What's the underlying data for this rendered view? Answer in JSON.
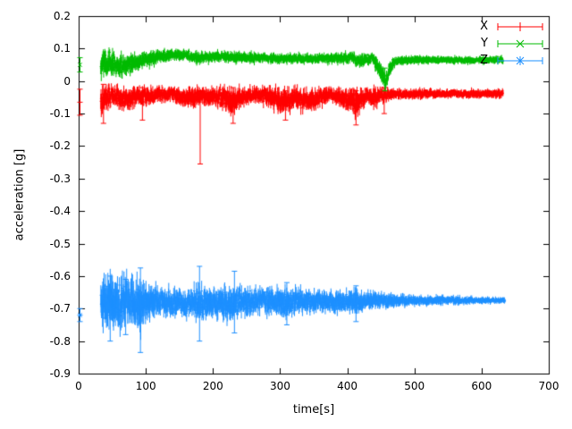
{
  "figure": {
    "background": "#ffffff",
    "border_color": "#000000"
  },
  "chart_data": {
    "type": "scatter",
    "style": "points with vertical error bars (gnuplot errorbars)",
    "title": "",
    "xlabel": "time[s]",
    "ylabel": "acceleration [g]",
    "xlim": [
      0,
      700
    ],
    "ylim": [
      -0.9,
      0.2
    ],
    "grid": false,
    "legend_position": "top-right-inside",
    "x_ticks": {
      "values": [
        0,
        100,
        200,
        300,
        400,
        500,
        600,
        700
      ],
      "labels": [
        "0",
        "100",
        "200",
        "300",
        "400",
        "500",
        "600",
        "700"
      ]
    },
    "y_ticks": {
      "values": [
        -0.9,
        -0.8,
        -0.7,
        -0.6,
        -0.5,
        -0.4,
        -0.3,
        -0.2,
        -0.1,
        0,
        0.1,
        0.2
      ],
      "labels": [
        "-0.9",
        "-0.8",
        "-0.7",
        "-0.6",
        "-0.5",
        "-0.4",
        "-0.3",
        "-0.2",
        "-0.1",
        "0",
        "0.1",
        "0.2"
      ]
    },
    "representation_note": "dense noisy time series; anchors are [t, mean, noise_halfwidth, errorbar_halfwidth], spikes are [t, y_low, y_high]",
    "series": [
      {
        "name": "X",
        "color": "#ff0000",
        "marker": "plus",
        "seed": 101,
        "t_range": [
          33,
          632
        ],
        "start_point": {
          "x": 2,
          "y": -0.065,
          "err": 0.04
        },
        "anchors": [
          [
            33,
            -0.06,
            0.05,
            0.02
          ],
          [
            40,
            -0.05,
            0.04,
            0.018
          ],
          [
            55,
            -0.045,
            0.035,
            0.015
          ],
          [
            70,
            -0.055,
            0.035,
            0.018
          ],
          [
            85,
            -0.045,
            0.03,
            0.015
          ],
          [
            100,
            -0.05,
            0.03,
            0.015
          ],
          [
            120,
            -0.04,
            0.022,
            0.012
          ],
          [
            140,
            -0.042,
            0.022,
            0.012
          ],
          [
            160,
            -0.05,
            0.028,
            0.015
          ],
          [
            178,
            -0.05,
            0.03,
            0.016
          ],
          [
            190,
            -0.045,
            0.026,
            0.014
          ],
          [
            210,
            -0.05,
            0.028,
            0.015
          ],
          [
            228,
            -0.065,
            0.035,
            0.02
          ],
          [
            245,
            -0.045,
            0.025,
            0.013
          ],
          [
            265,
            -0.04,
            0.022,
            0.012
          ],
          [
            285,
            -0.05,
            0.03,
            0.016
          ],
          [
            305,
            -0.065,
            0.035,
            0.02
          ],
          [
            322,
            -0.05,
            0.03,
            0.016
          ],
          [
            340,
            -0.06,
            0.032,
            0.018
          ],
          [
            358,
            -0.05,
            0.028,
            0.015
          ],
          [
            375,
            -0.04,
            0.02,
            0.011
          ],
          [
            395,
            -0.055,
            0.03,
            0.016
          ],
          [
            412,
            -0.068,
            0.04,
            0.02
          ],
          [
            428,
            -0.045,
            0.025,
            0.013
          ],
          [
            445,
            -0.05,
            0.028,
            0.015
          ],
          [
            460,
            -0.042,
            0.018,
            0.01
          ],
          [
            475,
            -0.04,
            0.014,
            0.008
          ],
          [
            510,
            -0.04,
            0.013,
            0.008
          ],
          [
            550,
            -0.038,
            0.012,
            0.007
          ],
          [
            590,
            -0.04,
            0.012,
            0.007
          ],
          [
            632,
            -0.04,
            0.012,
            0.007
          ]
        ],
        "spikes": [
          [
            37,
            -0.13,
            -0.01
          ],
          [
            95,
            -0.12,
            -0.02
          ],
          [
            181,
            -0.255,
            -0.03
          ],
          [
            230,
            -0.13,
            -0.02
          ],
          [
            308,
            -0.12,
            -0.03
          ],
          [
            413,
            -0.135,
            -0.03
          ],
          [
            455,
            -0.1,
            -0.02
          ]
        ]
      },
      {
        "name": "Y",
        "color": "#00bb00",
        "marker": "cross",
        "seed": 202,
        "t_range": [
          33,
          632
        ],
        "start_point": {
          "x": 2,
          "y": 0.05,
          "err": 0.022
        },
        "anchors": [
          [
            33,
            0.05,
            0.045,
            0.02
          ],
          [
            42,
            0.055,
            0.04,
            0.018
          ],
          [
            55,
            0.05,
            0.035,
            0.016
          ],
          [
            68,
            0.045,
            0.032,
            0.015
          ],
          [
            80,
            0.055,
            0.03,
            0.015
          ],
          [
            95,
            0.065,
            0.025,
            0.012
          ],
          [
            110,
            0.07,
            0.02,
            0.011
          ],
          [
            128,
            0.078,
            0.018,
            0.01
          ],
          [
            145,
            0.082,
            0.016,
            0.009
          ],
          [
            160,
            0.08,
            0.016,
            0.009
          ],
          [
            175,
            0.072,
            0.018,
            0.01
          ],
          [
            195,
            0.075,
            0.016,
            0.009
          ],
          [
            215,
            0.078,
            0.016,
            0.009
          ],
          [
            235,
            0.072,
            0.016,
            0.009
          ],
          [
            260,
            0.073,
            0.015,
            0.008
          ],
          [
            290,
            0.07,
            0.014,
            0.008
          ],
          [
            320,
            0.07,
            0.014,
            0.008
          ],
          [
            350,
            0.068,
            0.014,
            0.008
          ],
          [
            380,
            0.07,
            0.015,
            0.008
          ],
          [
            405,
            0.072,
            0.016,
            0.009
          ],
          [
            420,
            0.062,
            0.018,
            0.01
          ],
          [
            438,
            0.07,
            0.015,
            0.008
          ],
          [
            450,
            0.03,
            0.025,
            0.015
          ],
          [
            457,
            -0.005,
            0.02,
            0.012
          ],
          [
            463,
            0.04,
            0.022,
            0.012
          ],
          [
            472,
            0.062,
            0.013,
            0.008
          ],
          [
            500,
            0.065,
            0.011,
            0.007
          ],
          [
            540,
            0.065,
            0.01,
            0.006
          ],
          [
            580,
            0.064,
            0.01,
            0.006
          ],
          [
            632,
            0.066,
            0.01,
            0.006
          ]
        ],
        "spikes": [
          [
            456,
            -0.03,
            0.04
          ]
        ]
      },
      {
        "name": "Z",
        "color": "#1e90ff",
        "marker": "asterisk",
        "seed": 303,
        "t_range": [
          33,
          635
        ],
        "start_point": {
          "x": 2,
          "y": -0.72,
          "err": 0.02
        },
        "anchors": [
          [
            33,
            -0.68,
            0.055,
            0.03
          ],
          [
            42,
            -0.685,
            0.075,
            0.04
          ],
          [
            52,
            -0.68,
            0.07,
            0.038
          ],
          [
            62,
            -0.685,
            0.072,
            0.038
          ],
          [
            72,
            -0.68,
            0.065,
            0.034
          ],
          [
            82,
            -0.685,
            0.068,
            0.036
          ],
          [
            92,
            -0.69,
            0.07,
            0.04
          ],
          [
            102,
            -0.68,
            0.052,
            0.028
          ],
          [
            115,
            -0.677,
            0.042,
            0.022
          ],
          [
            130,
            -0.68,
            0.038,
            0.02
          ],
          [
            150,
            -0.682,
            0.036,
            0.019
          ],
          [
            168,
            -0.68,
            0.04,
            0.021
          ],
          [
            180,
            -0.685,
            0.05,
            0.027
          ],
          [
            195,
            -0.68,
            0.045,
            0.024
          ],
          [
            210,
            -0.683,
            0.048,
            0.025
          ],
          [
            225,
            -0.685,
            0.05,
            0.026
          ],
          [
            240,
            -0.68,
            0.044,
            0.023
          ],
          [
            258,
            -0.68,
            0.04,
            0.02
          ],
          [
            275,
            -0.676,
            0.035,
            0.018
          ],
          [
            292,
            -0.68,
            0.04,
            0.02
          ],
          [
            308,
            -0.684,
            0.045,
            0.023
          ],
          [
            325,
            -0.676,
            0.035,
            0.018
          ],
          [
            342,
            -0.68,
            0.036,
            0.018
          ],
          [
            360,
            -0.676,
            0.03,
            0.016
          ],
          [
            378,
            -0.68,
            0.034,
            0.017
          ],
          [
            395,
            -0.676,
            0.03,
            0.015
          ],
          [
            412,
            -0.68,
            0.034,
            0.017
          ],
          [
            428,
            -0.678,
            0.03,
            0.015
          ],
          [
            445,
            -0.675,
            0.024,
            0.012
          ],
          [
            462,
            -0.677,
            0.021,
            0.011
          ],
          [
            480,
            -0.675,
            0.018,
            0.01
          ],
          [
            505,
            -0.676,
            0.015,
            0.008
          ],
          [
            530,
            -0.674,
            0.013,
            0.007
          ],
          [
            558,
            -0.675,
            0.012,
            0.006
          ],
          [
            585,
            -0.674,
            0.01,
            0.006
          ],
          [
            610,
            -0.675,
            0.009,
            0.005
          ],
          [
            635,
            -0.675,
            0.008,
            0.005
          ]
        ],
        "spikes": [
          [
            47,
            -0.8,
            -0.6
          ],
          [
            70,
            -0.78,
            -0.61
          ],
          [
            92,
            -0.835,
            -0.575
          ],
          [
            180,
            -0.8,
            -0.57
          ],
          [
            232,
            -0.775,
            -0.585
          ],
          [
            310,
            -0.75,
            -0.62
          ],
          [
            413,
            -0.74,
            -0.63
          ]
        ]
      }
    ]
  }
}
